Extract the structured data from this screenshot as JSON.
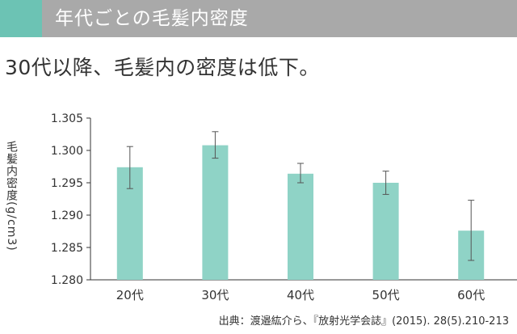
{
  "header": {
    "title": "年代ごとの毛髪内密度",
    "accent_color": "#6cc3b4",
    "bar_color": "#a9a9a9"
  },
  "headline": "30代以降、毛髪内の密度は低下。",
  "source": "出典：渡邉紘介ら、『放射光学会誌』(2015). 28(5).210-213",
  "chart_data": {
    "type": "bar",
    "title": "",
    "ylabel": "毛髪内密度(g/cm3)",
    "xlabel": "",
    "categories": [
      "20代",
      "30代",
      "40代",
      "50代",
      "60代"
    ],
    "values": [
      1.2974,
      1.3008,
      1.2964,
      1.295,
      1.2876
    ],
    "error_low": [
      1.2941,
      1.2988,
      1.295,
      1.2932,
      1.283
    ],
    "error_high": [
      1.3006,
      1.3029,
      1.298,
      1.2968,
      1.2923
    ],
    "ylim": [
      1.28,
      1.305
    ],
    "yticks": [
      "1.305",
      "1.300",
      "1.295",
      "1.290",
      "1.285",
      "1.280"
    ],
    "grid": false,
    "bar_color": "#8fd3c6"
  }
}
